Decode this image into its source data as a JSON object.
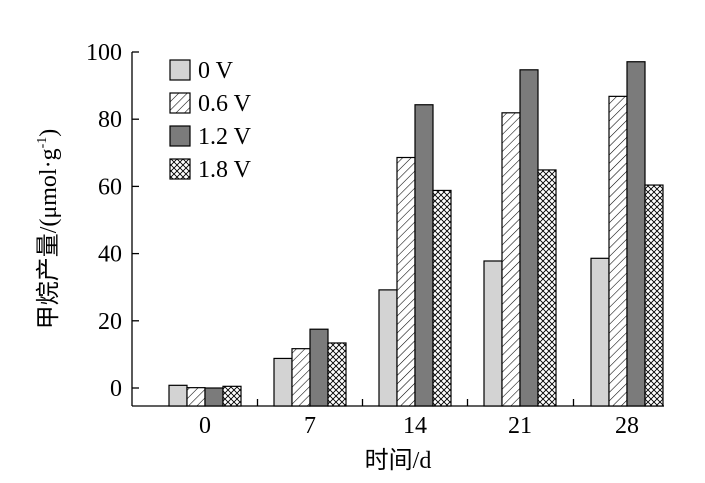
{
  "chart_data": {
    "type": "bar",
    "title": "",
    "xlabel": "时间/d",
    "ylabel": "甲烷产量/(μmol·g⁻¹)",
    "ylabel_parts": {
      "main": "甲烷产量/(μmol·g",
      "sup": "-1",
      "close": ")"
    },
    "ylim": [
      0,
      100
    ],
    "yticks": [
      0,
      20,
      40,
      60,
      80,
      100
    ],
    "categories": [
      "0",
      "7",
      "14",
      "21",
      "28"
    ],
    "series": [
      {
        "name": "0 V",
        "pattern": "solid-light",
        "values": [
          0.8,
          8.8,
          29.2,
          37.8,
          38.6
        ]
      },
      {
        "name": "0.6 V",
        "pattern": "diag-hatch",
        "values": [
          0.1,
          11.7,
          68.6,
          81.9,
          86.8
        ]
      },
      {
        "name": "1.2 V",
        "pattern": "solid-dark",
        "values": [
          0.0,
          17.5,
          84.3,
          94.7,
          97.1
        ]
      },
      {
        "name": "1.8 V",
        "pattern": "crosshatch",
        "values": [
          0.5,
          13.4,
          58.8,
          64.9,
          60.4
        ]
      }
    ],
    "legend": {
      "placement": "top-left"
    },
    "grid": false,
    "colors": {
      "solid-light": "#d3d3d3",
      "solid-dark": "#7b7b7b",
      "stroke": "#000000"
    }
  }
}
